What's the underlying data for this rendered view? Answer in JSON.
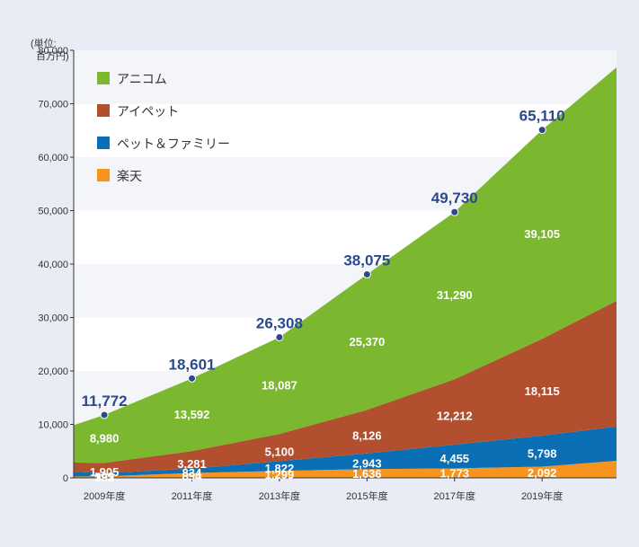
{
  "chart_data": {
    "type": "area",
    "stacked": true,
    "unit_label": [
      "(単位:",
      "百万円)"
    ],
    "ylim": [
      0,
      80000
    ],
    "y_ticks": [
      "0",
      "10,000",
      "20,000",
      "30,000",
      "40,000",
      "50,000",
      "60,000",
      "70,000",
      "80,000"
    ],
    "x_ticks": [
      "2009年度",
      "2011年度",
      "2013年度",
      "2015年度",
      "2017年度",
      "2019年度"
    ],
    "x_years": [
      2009,
      2011,
      2013,
      2015,
      2017,
      2019
    ],
    "x_range": [
      2008.3,
      2020.7
    ],
    "grid": "horizontal bands",
    "legend_position": "top-left",
    "series": [
      {
        "name": "楽天",
        "color": "#f7941d",
        "values": [
          292,
          894,
          1299,
          1636,
          1773,
          2092
        ],
        "labels": [
          "292",
          "894",
          "1,299",
          "1,636",
          "1,773",
          "2,092"
        ],
        "edges": [
          250,
          3200
        ]
      },
      {
        "name": "ペット＆ファミリー",
        "color": "#0a6fb5",
        "values": [
          595,
          834,
          1822,
          2943,
          4455,
          5798
        ],
        "labels": [
          "595",
          "834",
          "1,822",
          "2,943",
          "4,455",
          "5,798"
        ],
        "edges": [
          900,
          6400
        ]
      },
      {
        "name": "アイペット",
        "color": "#b24f2e",
        "values": [
          1905,
          3281,
          5100,
          8126,
          12212,
          18115
        ],
        "labels": [
          "1,905",
          "3,281",
          "5,100",
          "8,126",
          "12,212",
          "18,115"
        ],
        "edges": [
          1700,
          23500
        ]
      },
      {
        "name": "アニコム",
        "color": "#7cb82f",
        "values": [
          8980,
          13592,
          18087,
          25370,
          31290,
          39105
        ],
        "labels": [
          "8,980",
          "13,592",
          "18,087",
          "25,370",
          "31,290",
          "39,105"
        ],
        "edges": [
          7000,
          43700
        ]
      }
    ],
    "totals": [
      11772,
      18601,
      26308,
      38075,
      49730,
      65110
    ],
    "total_labels": [
      "11,772",
      "18,601",
      "26,308",
      "38,075",
      "49,730",
      "65,110"
    ]
  }
}
